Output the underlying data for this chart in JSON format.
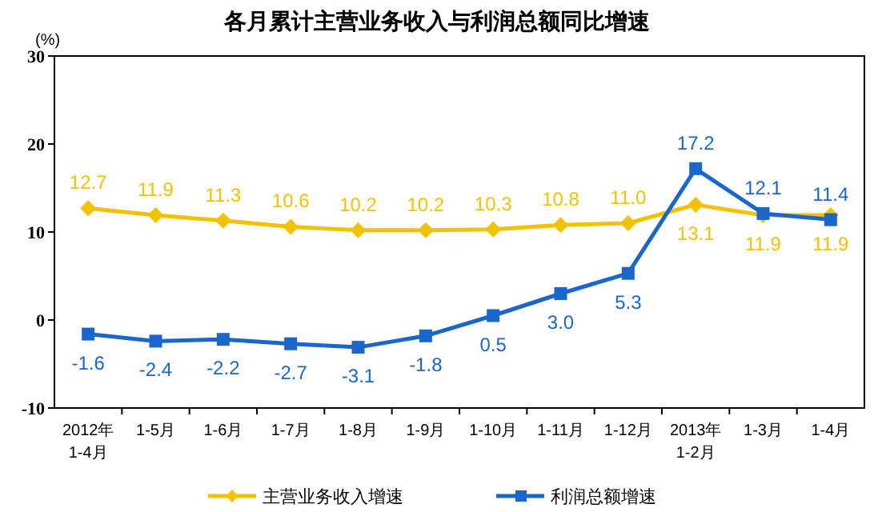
{
  "chart_data": {
    "type": "line",
    "title": "各月累计主营业务收入与利润总额同比增速",
    "ylabel": "(%)",
    "categories": [
      "2012年\n1-4月",
      "1-5月",
      "1-6月",
      "1-7月",
      "1-8月",
      "1-9月",
      "1-10月",
      "1-11月",
      "1-12月",
      "2013年\n1-2月",
      "1-3月",
      "1-4月"
    ],
    "series": [
      {
        "name": "主营业务收入增速",
        "color": "#f2c200",
        "marker": "diamond",
        "values": [
          12.7,
          11.9,
          11.3,
          10.6,
          10.2,
          10.2,
          10.3,
          10.8,
          11.0,
          13.1,
          11.9,
          11.9
        ],
        "value_labels": [
          "12.7",
          "11.9",
          "11.3",
          "10.6",
          "10.2",
          "10.2",
          "10.3",
          "10.8",
          "11.0",
          "13.1",
          "11.9",
          "11.9"
        ]
      },
      {
        "name": "利润总额增速",
        "color": "#1a66cc",
        "marker": "square",
        "values": [
          -1.6,
          -2.4,
          -2.2,
          -2.7,
          -3.1,
          -1.8,
          0.5,
          3.0,
          5.3,
          17.2,
          12.1,
          11.4
        ],
        "value_labels": [
          "-1.6",
          "-2.4",
          "-2.2",
          "-2.7",
          "-3.1",
          "-1.8",
          "0.5",
          "3.0",
          "5.3",
          "17.2",
          "12.1",
          "11.4"
        ]
      }
    ],
    "ylim": [
      -10,
      30
    ],
    "yticks": [
      -10,
      0,
      10,
      20,
      30
    ],
    "grid": false,
    "legend": "bottom",
    "line_style": "solid"
  }
}
